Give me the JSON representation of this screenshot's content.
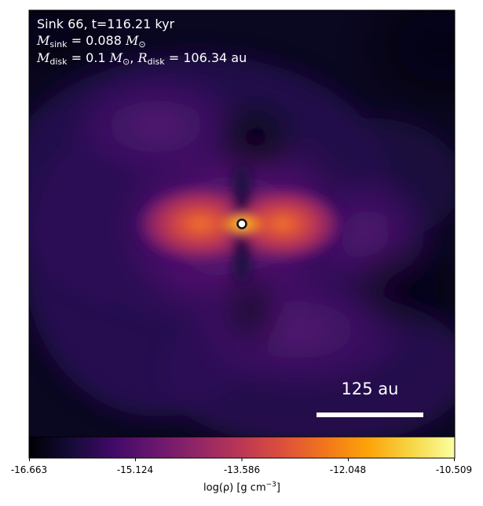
{
  "annotation": {
    "line1": "Sink 66, t=116.21 kyr",
    "sink_symbol": "M",
    "sink_subscript": "sink",
    "sink_value": " = 0.088",
    "disk_symbol": "M",
    "disk_subscript": "disk",
    "disk_value": " = 0.1",
    "disk_radius_symbol": "R",
    "disk_radius_subscript": "disk",
    "disk_radius_value": " = 106.34 au",
    "solar_mass_unit": "M",
    "solar_mass_subscript": "⊙"
  },
  "scale_bar": {
    "label": "125 au"
  },
  "colorbar": {
    "colormap": "inferno",
    "ticks": [
      "-16.663",
      "-15.124",
      "-13.586",
      "-12.048",
      "-10.509"
    ],
    "label_main": "log(ρ) [g cm",
    "label_exp": "−3",
    "label_close": "]"
  },
  "colors": {
    "background": "#000004",
    "dark_purple": "#1b0c41",
    "purple": "#4a0c6b",
    "magenta": "#781c6d",
    "red": "#a52c60",
    "orange_red": "#cf4446",
    "orange": "#ed6925",
    "gold": "#fb9b06",
    "yellow": "#f7d13d",
    "pale_yellow": "#fcffa4"
  }
}
